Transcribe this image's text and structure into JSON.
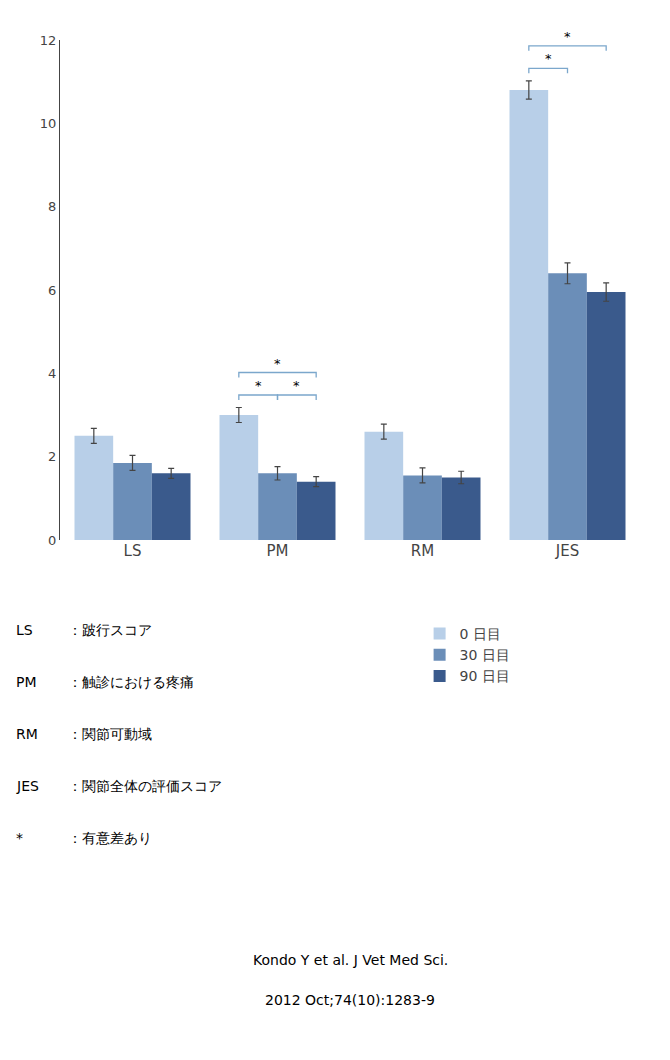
{
  "chart_data": {
    "type": "bar",
    "categories": [
      "LS",
      "PM",
      "RM",
      "JES"
    ],
    "series": [
      {
        "name": "0 日目",
        "color": "#b8cfe8",
        "values": [
          2.5,
          3.0,
          2.6,
          10.8
        ],
        "errors": [
          0.18,
          0.18,
          0.18,
          0.22
        ]
      },
      {
        "name": "30 日目",
        "color": "#6b8eb8",
        "values": [
          1.85,
          1.6,
          1.55,
          6.4
        ],
        "errors": [
          0.18,
          0.16,
          0.18,
          0.25
        ]
      },
      {
        "name": "90 日目",
        "color": "#3a5a8c",
        "values": [
          1.6,
          1.4,
          1.5,
          5.95
        ],
        "errors": [
          0.12,
          0.12,
          0.15,
          0.22
        ]
      }
    ],
    "ylim": [
      0,
      12
    ],
    "yticks": [
      0,
      2,
      4,
      6,
      8,
      10,
      12
    ],
    "grid": false,
    "legend": "lower right",
    "annotations": [
      {
        "text": "*",
        "category": "PM",
        "from": "0 日目",
        "to": "30 日目",
        "color": "#7ba7cc"
      },
      {
        "text": "*",
        "category": "PM",
        "from": "30 日目",
        "to": "90 日目",
        "color": "#7ba7cc"
      },
      {
        "text": "*",
        "category": "PM",
        "from": "0 日目",
        "to": "90 日目",
        "color": "#7ba7cc"
      },
      {
        "text": "*",
        "category": "JES",
        "from": "0 日目",
        "to": "30 日目",
        "color": "#7ba7cc"
      },
      {
        "text": "*",
        "category": "JES",
        "from": "0 日目",
        "to": "90 日目",
        "color": "#7ba7cc"
      }
    ],
    "notes": [
      {
        "key": "LS",
        "text": "：跛行スコア"
      },
      {
        "key": "PM",
        "text": "：触診における疼痛"
      },
      {
        "key": "RM",
        "text": "：関節可動域"
      },
      {
        "key": "JES",
        "text": "：関節全体の評価スコア"
      },
      {
        "key": "*",
        "text": "：有意差あり"
      }
    ],
    "source": [
      "Kondo Y et al. J Vet Med Sci.",
      "2012 Oct;74(10):1283-9"
    ]
  }
}
